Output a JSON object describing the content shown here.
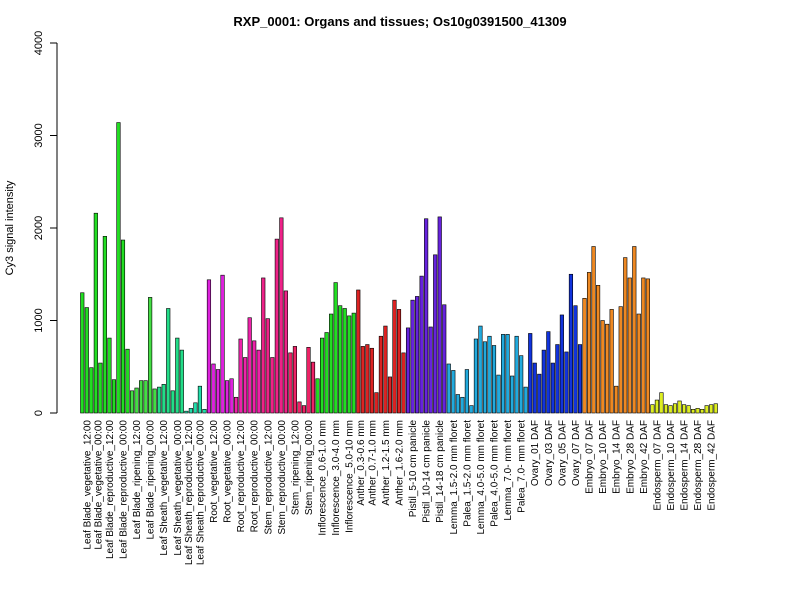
{
  "chart_data": {
    "type": "bar",
    "title": "RXP_0001: Organs and tissues; Os10g0391500_41309",
    "xlabel": "",
    "ylabel": "Cy3 signal intensity",
    "ylim": [
      0,
      4000
    ],
    "yticks": [
      0,
      1000,
      2000,
      3000,
      4000
    ],
    "grid": false,
    "legend": "none",
    "groups": [
      {
        "name": "Leaf Blade_vegetative_12:00",
        "color": "#22dd22",
        "values": [
          1300,
          1140,
          490
        ]
      },
      {
        "name": "Leaf Blade_vegetative_00:00",
        "color": "#22dd22",
        "values": [
          2160,
          540
        ]
      },
      {
        "name": "Leaf Blade_reproductive_12:00",
        "color": "#22dd22",
        "values": [
          1910,
          810,
          360
        ]
      },
      {
        "name": "Leaf Blade_reproductive_00:00",
        "color": "#22dd22",
        "values": [
          3140,
          1870,
          690
        ]
      },
      {
        "name": "Leaf Blade_ripening_12:00",
        "color": "#44dd44",
        "values": [
          240,
          270,
          350
        ]
      },
      {
        "name": "Leaf Blade_ripening_00:00",
        "color": "#44dd44",
        "values": [
          350,
          1250,
          260
        ]
      },
      {
        "name": "Leaf Sheath_vegetative_12:00",
        "color": "#22dd88",
        "values": [
          280,
          310,
          1130
        ]
      },
      {
        "name": "Leaf Sheath_vegetative_00:00",
        "color": "#22dd88",
        "values": [
          240,
          810,
          680
        ]
      },
      {
        "name": "Leaf Sheath_reproductive_12:00",
        "color": "#22ddaa",
        "values": [
          20,
          50
        ]
      },
      {
        "name": "Leaf Sheath_reproductive_00:00",
        "color": "#22ddaa",
        "values": [
          110,
          290,
          40
        ]
      },
      {
        "name": "Root_vegetative_12:00",
        "color": "#dd22dd",
        "values": [
          1440,
          530,
          470
        ]
      },
      {
        "name": "Root_vegetative_00:00",
        "color": "#dd22dd",
        "values": [
          1490,
          350,
          370
        ]
      },
      {
        "name": "Root_reproductive_12:00",
        "color": "#ee22aa",
        "values": [
          170,
          800,
          600
        ]
      },
      {
        "name": "Root_reproductive_00:00",
        "color": "#ee22aa",
        "values": [
          1030,
          780,
          680
        ]
      },
      {
        "name": "Stem_reproductive_12:00",
        "color": "#ee2288",
        "values": [
          1460,
          1020,
          600
        ]
      },
      {
        "name": "Stem_reproductive_00:00",
        "color": "#ee2288",
        "values": [
          1880,
          2110,
          1320
        ]
      },
      {
        "name": "Stem_ripening_12:00",
        "color": "#ee2266",
        "values": [
          650,
          720,
          120
        ]
      },
      {
        "name": "Stem_ripening_00:00",
        "color": "#ee2266",
        "values": [
          80,
          710,
          550
        ]
      },
      {
        "name": "Inflorescence_0.6-1.0 mm",
        "color": "#22dd22",
        "values": [
          370,
          810,
          870
        ]
      },
      {
        "name": "Inflorescence_3.0-4.0 mm",
        "color": "#22dd22",
        "values": [
          1070,
          1410,
          1160
        ]
      },
      {
        "name": "Inflorescence_5.0-10 mm",
        "color": "#22dd22",
        "values": [
          1130,
          1050,
          1080
        ]
      },
      {
        "name": "Anther_0.3-0.6 mm",
        "color": "#dd2222",
        "values": [
          1330,
          720
        ]
      },
      {
        "name": "Anther_0.7-1.0 mm",
        "color": "#dd2222",
        "values": [
          740,
          700,
          220
        ]
      },
      {
        "name": "Anther_1.2-1.5 mm",
        "color": "#dd2222",
        "values": [
          830,
          940,
          390
        ]
      },
      {
        "name": "Anther_1.6-2.0 mm",
        "color": "#dd2222",
        "values": [
          1220,
          1120,
          650
        ]
      },
      {
        "name": "Pistil_5-10 cm panicle",
        "color": "#6622dd",
        "values": [
          920,
          1220,
          1260
        ]
      },
      {
        "name": "Pistil_10-14 cm panicle",
        "color": "#6622dd",
        "values": [
          1480,
          2100,
          930
        ]
      },
      {
        "name": "Pistil_14-18 cm panicle",
        "color": "#6622dd",
        "values": [
          1710,
          2120,
          1170
        ]
      },
      {
        "name": "Lemma_1.5-2.0 mm floret",
        "color": "#22aadd",
        "values": [
          530,
          460,
          200
        ]
      },
      {
        "name": "Palea_1.5-2.0 mm floret",
        "color": "#22aadd",
        "values": [
          170,
          470,
          80
        ]
      },
      {
        "name": "Lemma_4.0-5.0 mm floret",
        "color": "#22aadd",
        "values": [
          800,
          940,
          770
        ]
      },
      {
        "name": "Palea_4.0-5.0 mm floret",
        "color": "#22aadd",
        "values": [
          830,
          730,
          410
        ]
      },
      {
        "name": "Lemma_7.0- mm floret",
        "color": "#22aadd",
        "values": [
          850,
          850,
          400
        ]
      },
      {
        "name": "Palea_7.0- mm floret",
        "color": "#22aadd",
        "values": [
          830,
          620,
          280
        ]
      },
      {
        "name": "Ovary_01 DAF",
        "color": "#1133dd",
        "values": [
          860,
          540,
          420
        ]
      },
      {
        "name": "Ovary_03 DAF",
        "color": "#1133dd",
        "values": [
          680,
          880,
          540
        ]
      },
      {
        "name": "Ovary_05 DAF",
        "color": "#1133dd",
        "values": [
          740,
          1060,
          660
        ]
      },
      {
        "name": "Ovary_07 DAF",
        "color": "#1133dd",
        "values": [
          1500,
          1160,
          740
        ]
      },
      {
        "name": "Embryo_07 DAF",
        "color": "#ee8822",
        "values": [
          1240,
          1520,
          1800
        ]
      },
      {
        "name": "Embryo_10 DAF",
        "color": "#ee8822",
        "values": [
          1380,
          1000,
          960
        ]
      },
      {
        "name": "Embryo_14 DAF",
        "color": "#ee8822",
        "values": [
          1120,
          290,
          1150
        ]
      },
      {
        "name": "Embryo_28 DAF",
        "color": "#ee8822",
        "values": [
          1680,
          1460,
          1800
        ]
      },
      {
        "name": "Embryo_42 DAF",
        "color": "#ee8822",
        "values": [
          1070,
          1460,
          1450
        ]
      },
      {
        "name": "Endosperm_07 DAF",
        "color": "#ddee22",
        "values": [
          90,
          140,
          220
        ]
      },
      {
        "name": "Endosperm_10 DAF",
        "color": "#ddee22",
        "values": [
          90,
          80,
          100
        ]
      },
      {
        "name": "Endosperm_14 DAF",
        "color": "#ddee22",
        "values": [
          130,
          90,
          80
        ]
      },
      {
        "name": "Endosperm_28 DAF",
        "color": "#ddee22",
        "values": [
          40,
          50,
          40
        ]
      },
      {
        "name": "Endosperm_42 DAF",
        "color": "#ddee22",
        "values": [
          80,
          90,
          100
        ]
      }
    ]
  }
}
